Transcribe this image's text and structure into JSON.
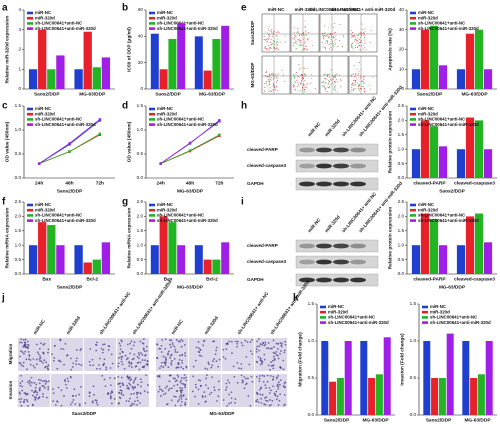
{
  "panel_labels": [
    "a",
    "b",
    "e",
    "c",
    "d",
    "h",
    "f",
    "g",
    "i",
    "j",
    "k"
  ],
  "flow": {
    "rows": [
      "Saos2/DDP",
      "MG-63/DDP"
    ],
    "columns": [
      "miR-NC",
      "miR-320d",
      "sh-LINC00641+ anti-NC",
      "sh-LINC00641+ anti-miR-320d"
    ]
  },
  "blot_h": {
    "columns": [
      "miR-NC",
      "miR-320d",
      "sh-LINC00641+ anti-NC",
      "sh-LINC00641+ anti-miR-320d"
    ],
    "rows": [
      "cleaved-PARP",
      "cleaved-caspase3",
      "GAPDH"
    ]
  },
  "blot_i": {
    "columns": [
      "miR-NC",
      "miR-320d",
      "sh-LINC00641+ anti-NC",
      "sh-LINC00641+ anti-miR-320d"
    ],
    "rows": [
      "cleaved-PARP",
      "cleaved-caspase3",
      "GAPDH"
    ]
  },
  "transwell": {
    "rows": [
      "Migration",
      "Invasion"
    ],
    "columns": [
      "miR-NC",
      "miR-320d",
      "sh-LINC00641+ anti-NC",
      "sh-LINC00641+ anti-miR-320d"
    ],
    "groups": [
      "Saos2/DDP",
      "MG-63/DDP"
    ]
  },
  "chart_data": [
    {
      "type": "bar",
      "ylabel": "Relative miR-320d expression",
      "categories": [
        "Saos2/DDP",
        "MG-63/DDP"
      ],
      "ylim": [
        0,
        4
      ],
      "yticks": [
        0,
        1,
        2,
        3,
        4
      ],
      "series": [
        {
          "name": "miR-NC",
          "color": "#1f3fcf",
          "values": [
            1.0,
            1.0
          ]
        },
        {
          "name": "miR-320d",
          "color": "#e8202a",
          "values": [
            3.0,
            2.9
          ]
        },
        {
          "name": "sh-LINC00641+anti-NC",
          "color": "#22b422",
          "values": [
            1.0,
            1.1
          ]
        },
        {
          "name": "sh-LINC00641+anti-miR-320d",
          "color": "#a11ee6",
          "values": [
            1.7,
            1.6
          ]
        }
      ]
    },
    {
      "type": "bar",
      "ylabel": "IC50 of DDP (μg/ml)",
      "categories": [
        "Saos2/DDP",
        "MG-63/DDP"
      ],
      "ylim": [
        0,
        60
      ],
      "yticks": [
        0,
        20,
        40,
        60
      ],
      "series": [
        {
          "name": "miR-NC",
          "color": "#1f3fcf",
          "values": [
            42,
            40
          ]
        },
        {
          "name": "miR-320d",
          "color": "#e8202a",
          "values": [
            15,
            14
          ]
        },
        {
          "name": "sh-LINC00641+anti-NC",
          "color": "#22b422",
          "values": [
            38,
            38
          ]
        },
        {
          "name": "sh-LINC00641+anti-miR-320d",
          "color": "#a11ee6",
          "values": [
            50,
            48
          ]
        }
      ]
    },
    {
      "type": "bar",
      "ylabel": "Apoptosis rate (%)",
      "categories": [
        "Saos2/DDP",
        "MG-63/DDP"
      ],
      "ylim": [
        0,
        40
      ],
      "yticks": [
        0,
        10,
        20,
        30,
        40
      ],
      "series": [
        {
          "name": "miR-NC",
          "color": "#1f3fcf",
          "values": [
            10,
            10
          ]
        },
        {
          "name": "miR-320d",
          "color": "#e8202a",
          "values": [
            30,
            28
          ]
        },
        {
          "name": "sh-LINC00641+anti-NC",
          "color": "#22b422",
          "values": [
            32,
            30
          ]
        },
        {
          "name": "sh-LINC00641+anti-miR-320d",
          "color": "#a11ee6",
          "values": [
            12,
            10
          ]
        }
      ]
    },
    {
      "type": "line",
      "ylabel": "OD value (450nm)",
      "xlabel": "Saos2/DDP",
      "categories": [
        "24h",
        "48h",
        "72h"
      ],
      "ylim": [
        0,
        1.5
      ],
      "yticks": [
        {
          "value": 0,
          "label": "0.0"
        },
        0.5,
        {
          "value": 1,
          "label": "1.0"
        },
        1.5
      ],
      "series": [
        {
          "name": "miR-NC",
          "color": "#1f3fcf",
          "values": [
            0.3,
            0.7,
            1.2
          ]
        },
        {
          "name": "miR-320d",
          "color": "#e8202a",
          "values": [
            0.3,
            0.55,
            0.9
          ]
        },
        {
          "name": "sh-LINC00641+anti-NC",
          "color": "#22b422",
          "values": [
            0.3,
            0.55,
            0.92
          ]
        },
        {
          "name": "sh-LINC00641+anti-miR-320d",
          "color": "#a11ee6",
          "values": [
            0.3,
            0.72,
            1.22
          ]
        }
      ]
    },
    {
      "type": "line",
      "ylabel": "OD value (450nm)",
      "xlabel": "MG-63/DDP",
      "categories": [
        "24h",
        "48h",
        "72h"
      ],
      "ylim": [
        0,
        1.5
      ],
      "yticks": [
        {
          "value": 0,
          "label": "0.0"
        },
        0.5,
        {
          "value": 1,
          "label": "1.0"
        },
        1.5
      ],
      "series": [
        {
          "name": "miR-NC",
          "color": "#1f3fcf",
          "values": [
            0.3,
            0.72,
            1.2
          ]
        },
        {
          "name": "miR-320d",
          "color": "#e8202a",
          "values": [
            0.3,
            0.56,
            0.88
          ]
        },
        {
          "name": "sh-LINC00641+anti-NC",
          "color": "#22b422",
          "values": [
            0.3,
            0.57,
            0.9
          ]
        },
        {
          "name": "sh-LINC00641+anti-miR-320d",
          "color": "#a11ee6",
          "values": [
            0.3,
            0.73,
            1.18
          ]
        }
      ]
    },
    {
      "type": "bar",
      "ylabel": "Relative protein expression",
      "xlabel": "Saos2/DDP",
      "categories": [
        "cleaved-PARP",
        "cleaved-caspase3"
      ],
      "ylim": [
        0,
        2.5
      ],
      "yticks": [
        {
          "value": 0,
          "label": "0.0"
        },
        0.5,
        {
          "value": 1,
          "label": "1.0"
        },
        1.5,
        {
          "value": 2,
          "label": "2.0"
        },
        2.5
      ],
      "series": [
        {
          "name": "miR-NC",
          "color": "#1f3fcf",
          "values": [
            1.0,
            1.0
          ]
        },
        {
          "name": "miR-320d",
          "color": "#e8202a",
          "values": [
            2.0,
            2.1
          ]
        },
        {
          "name": "sh-LINC00641+anti-NC",
          "color": "#22b422",
          "values": [
            1.8,
            2.0
          ]
        },
        {
          "name": "sh-LINC00641+anti-miR-320d",
          "color": "#a11ee6",
          "values": [
            1.1,
            1.0
          ]
        }
      ]
    },
    {
      "type": "bar",
      "ylabel": "Relative mRNA expression",
      "xlabel": "Saos2/DDP",
      "categories": [
        "Bax",
        "Bcl-2"
      ],
      "ylim": [
        0,
        2.5
      ],
      "yticks": [
        {
          "value": 0,
          "label": "0.0"
        },
        0.5,
        {
          "value": 1,
          "label": "1.0"
        },
        1.5,
        {
          "value": 2,
          "label": "2.0"
        },
        2.5
      ],
      "series": [
        {
          "name": "miR-NC",
          "color": "#1f3fcf",
          "values": [
            1.0,
            1.0
          ]
        },
        {
          "name": "miR-320d",
          "color": "#e8202a",
          "values": [
            1.8,
            0.4
          ]
        },
        {
          "name": "sh-LINC00641+anti-NC",
          "color": "#22b422",
          "values": [
            1.7,
            0.5
          ]
        },
        {
          "name": "sh-LINC00641+anti-miR-320d",
          "color": "#a11ee6",
          "values": [
            1.0,
            1.1
          ]
        }
      ]
    },
    {
      "type": "bar",
      "ylabel": "Relative mRNA expression",
      "xlabel": "MG-63/DDP",
      "categories": [
        "Bax",
        "Bcl-2"
      ],
      "ylim": [
        0,
        2.5
      ],
      "yticks": [
        {
          "value": 0,
          "label": "0.0"
        },
        0.5,
        {
          "value": 1,
          "label": "1.0"
        },
        1.5,
        {
          "value": 2,
          "label": "2.0"
        },
        2.5
      ],
      "series": [
        {
          "name": "miR-NC",
          "color": "#1f3fcf",
          "values": [
            1.0,
            1.0
          ]
        },
        {
          "name": "miR-320d",
          "color": "#e8202a",
          "values": [
            2.0,
            0.5
          ]
        },
        {
          "name": "sh-LINC00641+anti-NC",
          "color": "#22b422",
          "values": [
            1.8,
            0.5
          ]
        },
        {
          "name": "sh-LINC00641+anti-miR-320d",
          "color": "#a11ee6",
          "values": [
            1.0,
            1.1
          ]
        }
      ]
    },
    {
      "type": "bar",
      "ylabel": "Relative protein expression",
      "xlabel": "MG-63/DDP",
      "categories": [
        "cleaved-PARP",
        "cleaved-caspase3"
      ],
      "ylim": [
        0,
        2.5
      ],
      "yticks": [
        {
          "value": 0,
          "label": "0.0"
        },
        0.5,
        {
          "value": 1,
          "label": "1.0"
        },
        1.5,
        {
          "value": 2,
          "label": "2.0"
        },
        2.5
      ],
      "series": [
        {
          "name": "miR-NC",
          "color": "#1f3fcf",
          "values": [
            1.0,
            1.0
          ]
        },
        {
          "name": "miR-320d",
          "color": "#e8202a",
          "values": [
            2.1,
            2.0
          ]
        },
        {
          "name": "sh-LINC00641+anti-NC",
          "color": "#22b422",
          "values": [
            1.9,
            2.1
          ]
        },
        {
          "name": "sh-LINC00641+anti-miR-320d",
          "color": "#a11ee6",
          "values": [
            1.0,
            1.1
          ]
        }
      ]
    },
    {
      "type": "bar",
      "ylabel": "Migration (Fold change)",
      "categories": [
        "Saos2/DDP",
        "MG-63/DDP"
      ],
      "ylim": [
        0,
        1.5
      ],
      "yticks": [
        {
          "value": 0,
          "label": "0.0"
        },
        0.5,
        {
          "value": 1,
          "label": "1.0"
        },
        1.5
      ],
      "series": [
        {
          "name": "miR-NC",
          "color": "#1f3fcf",
          "values": [
            1.0,
            1.0
          ]
        },
        {
          "name": "miR-320d",
          "color": "#e8202a",
          "values": [
            0.45,
            0.5
          ]
        },
        {
          "name": "sh-LINC00641+anti-NC",
          "color": "#22b422",
          "values": [
            0.5,
            0.55
          ]
        },
        {
          "name": "sh-LINC00641+anti-miR-320d",
          "color": "#a11ee6",
          "values": [
            1.0,
            1.05
          ]
        }
      ]
    },
    {
      "type": "bar",
      "ylabel": "Invasion (Fold change)",
      "categories": [
        "Saos2/DDP",
        "MG-63/DDP"
      ],
      "ylim": [
        0,
        1.5
      ],
      "yticks": [
        {
          "value": 0,
          "label": "0.0"
        },
        0.5,
        {
          "value": 1,
          "label": "1.0"
        },
        1.5
      ],
      "series": [
        {
          "name": "miR-NC",
          "color": "#1f3fcf",
          "values": [
            1.0,
            1.0
          ]
        },
        {
          "name": "miR-320d",
          "color": "#e8202a",
          "values": [
            0.5,
            0.5
          ]
        },
        {
          "name": "sh-LINC00641+anti-NC",
          "color": "#22b422",
          "values": [
            0.5,
            0.55
          ]
        },
        {
          "name": "sh-LINC00641+anti-miR-320d",
          "color": "#a11ee6",
          "values": [
            1.1,
            1.0
          ]
        }
      ]
    }
  ]
}
